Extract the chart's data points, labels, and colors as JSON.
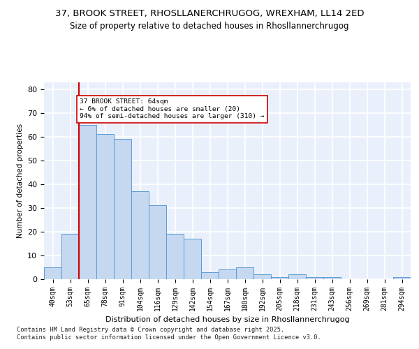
{
  "title1": "37, BROOK STREET, RHOSLLANERCHRUGOG, WREXHAM, LL14 2ED",
  "title2": "Size of property relative to detached houses in Rhosllannerchrugog",
  "xlabel": "Distribution of detached houses by size in Rhosllannerchrugog",
  "ylabel": "Number of detached properties",
  "categories": [
    "40sqm",
    "53sqm",
    "65sqm",
    "78sqm",
    "91sqm",
    "104sqm",
    "116sqm",
    "129sqm",
    "142sqm",
    "154sqm",
    "167sqm",
    "180sqm",
    "192sqm",
    "205sqm",
    "218sqm",
    "231sqm",
    "243sqm",
    "256sqm",
    "269sqm",
    "281sqm",
    "294sqm"
  ],
  "bar_values": [
    5,
    19,
    65,
    61,
    59,
    37,
    31,
    19,
    17,
    3,
    4,
    5,
    2,
    1,
    2,
    1,
    1,
    0,
    0,
    0,
    1
  ],
  "bar_color": "#c5d8f0",
  "bar_edge_color": "#5b9bd5",
  "background_color": "#eaf0fb",
  "grid_color": "#ffffff",
  "annotation_text": "37 BROOK STREET: 64sqm\n← 6% of detached houses are smaller (20)\n94% of semi-detached houses are larger (310) →",
  "vline_x": 1.5,
  "vline_color": "#cc0000",
  "annotation_box_color": "#cc0000",
  "footer": "Contains HM Land Registry data © Crown copyright and database right 2025.\nContains public sector information licensed under the Open Government Licence v3.0.",
  "ylim": [
    0,
    83
  ],
  "yticks": [
    0,
    10,
    20,
    30,
    40,
    50,
    60,
    70,
    80
  ]
}
